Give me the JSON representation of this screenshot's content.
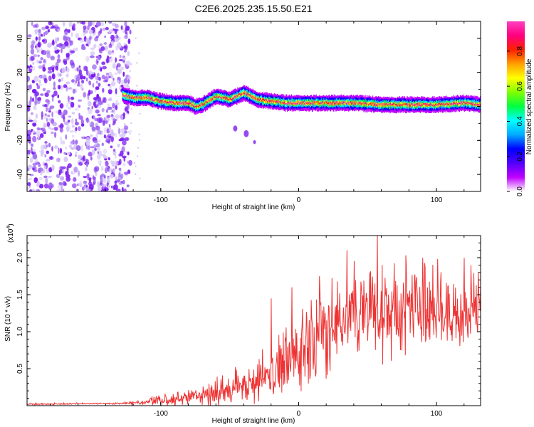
{
  "title": "C2E6.2025.235.15.50.E21",
  "chart_data": [
    {
      "type": "heatmap",
      "name": "spectrogram",
      "xlabel": "Height of straight line (km)",
      "ylabel": "Frequency (Hz)",
      "xlim": [
        -197,
        132
      ],
      "ylim": [
        -50,
        50
      ],
      "xticks": [
        -100,
        0,
        100
      ],
      "xtick_labels": [
        "-100",
        "0",
        "100"
      ],
      "yticks": [
        -40,
        -20,
        0,
        20,
        40
      ],
      "ytick_labels": [
        "-40",
        "-20",
        "0",
        "20",
        "40"
      ],
      "colorbar": {
        "label": "Normalized spectral amplitude",
        "range": [
          0,
          0.97
        ],
        "ticks": [
          0.0,
          0.2,
          0.4,
          0.6,
          0.8
        ],
        "tick_labels": [
          "0.0",
          "0.2",
          "0.4",
          "0.6",
          "0.8"
        ],
        "colors": [
          "#ffffff",
          "#c000ff",
          "#5000ff",
          "#0000ff",
          "#00aaff",
          "#00ffff",
          "#00ff40",
          "#80ff00",
          "#ffff00",
          "#ffa000",
          "#ff2000",
          "#ff0080",
          "#ff40c0"
        ]
      },
      "ridge": {
        "x": [
          -128,
          -120,
          -110,
          -100,
          -90,
          -80,
          -75,
          -70,
          -60,
          -50,
          -40,
          -35,
          -30,
          -20,
          -10,
          0,
          10,
          20,
          40,
          60,
          80,
          100,
          120,
          132
        ],
        "frequency": [
          7,
          5,
          5,
          3,
          2,
          2,
          0,
          1,
          6,
          4,
          8,
          6,
          4,
          3,
          2,
          2,
          2,
          2,
          2,
          1,
          1,
          1,
          2,
          1
        ]
      },
      "noise_region_x": [
        -197,
        -128
      ]
    },
    {
      "type": "line",
      "name": "snr",
      "xlabel": "Height of straight line (km)",
      "ylabel": "SNR (10 * v/v)",
      "scale_label": "(x10",
      "scale_exponent": "4",
      "scale_suffix": ")",
      "xlim": [
        -197,
        132
      ],
      "ylim": [
        0,
        2.3
      ],
      "xticks": [
        -100,
        0,
        100
      ],
      "xtick_labels": [
        "-100",
        "0",
        "100"
      ],
      "yticks": [
        0.5,
        1.0,
        1.5,
        2.0
      ],
      "ytick_labels": [
        "0.5",
        "1.0",
        "1.5",
        "2.0"
      ],
      "color": "#ee3333",
      "envelope_x": [
        -197,
        -130,
        -110,
        -90,
        -70,
        -50,
        -30,
        -20,
        -10,
        0,
        10,
        20,
        30,
        40,
        50,
        60,
        80,
        100,
        120,
        132
      ],
      "envelope_mean": [
        0.02,
        0.03,
        0.05,
        0.08,
        0.15,
        0.22,
        0.3,
        0.45,
        0.55,
        0.7,
        0.9,
        1.05,
        1.15,
        1.25,
        1.3,
        1.32,
        1.3,
        1.25,
        1.25,
        1.25
      ],
      "envelope_spread": [
        0.01,
        0.01,
        0.04,
        0.08,
        0.12,
        0.18,
        0.25,
        0.35,
        0.38,
        0.45,
        0.5,
        0.55,
        0.55,
        0.55,
        0.55,
        0.55,
        0.5,
        0.5,
        0.45,
        0.45
      ],
      "peaks": [
        [
          -20,
          1.45
        ],
        [
          -5,
          1.6
        ],
        [
          15,
          1.75
        ],
        [
          35,
          2.1
        ],
        [
          57,
          2.35
        ],
        [
          90,
          2.0
        ],
        [
          120,
          2.0
        ],
        [
          125,
          1.9
        ]
      ]
    }
  ]
}
